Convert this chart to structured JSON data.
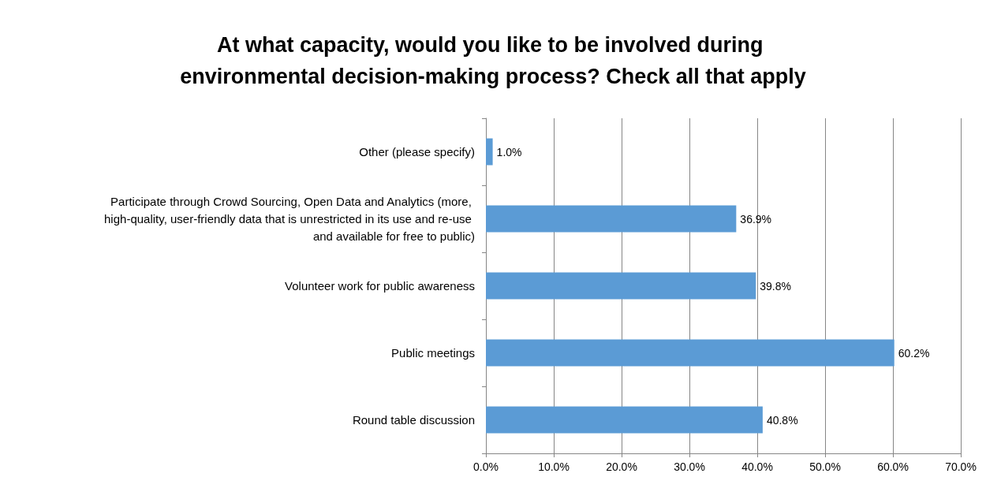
{
  "chart_data": {
    "type": "bar",
    "orientation": "horizontal",
    "title": "At what capacity, would you like to be involved during environmental decision-making process? Check all that apply",
    "categories": [
      "Other (please specify)",
      "Participate through Crowd Sourcing, Open Data and Analytics (more, high-quality, user-friendly data that is unrestricted in its use and re-use and available for free to public)",
      "Volunteer work for public awareness",
      "Public meetings",
      "Round table discussion"
    ],
    "values": [
      1.0,
      36.9,
      39.8,
      60.2,
      40.8
    ],
    "value_labels": [
      "1.0%",
      "36.9%",
      "39.8%",
      "60.2%",
      "40.8%"
    ],
    "color": "#5b9bd5",
    "xlim": [
      0,
      70
    ],
    "xticks": [
      {
        "value": 0,
        "label": "0.0%"
      },
      {
        "value": 10,
        "label": "10.0%"
      },
      {
        "value": 20,
        "label": "20.0%"
      },
      {
        "value": 30,
        "label": "30.0%"
      },
      {
        "value": 40,
        "label": "40.0%"
      },
      {
        "value": 50,
        "label": "50.0%"
      },
      {
        "value": 60,
        "label": "60.0%"
      },
      {
        "value": 70,
        "label": "70.0%"
      }
    ],
    "grid": "x"
  }
}
